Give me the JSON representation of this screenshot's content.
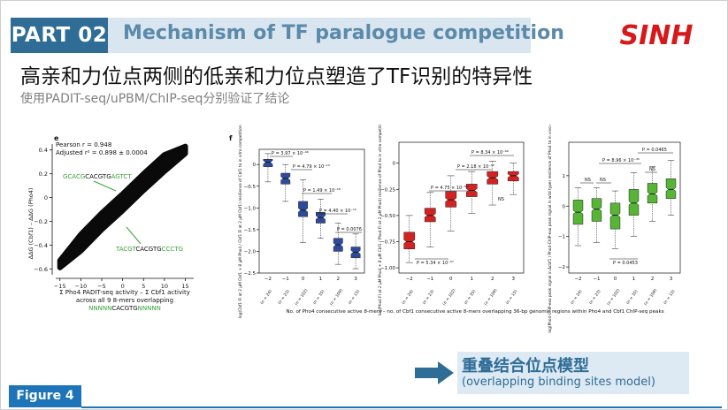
{
  "header": {
    "part_label": "PART 02",
    "part_title": "Mechanism of TF paralogue competition",
    "logo_text": "SINH"
  },
  "headline": "高亲和力位点两侧的低亲和力位点塑造了TF识别的特异性",
  "subline": "使用PADIT-seq/uPBM/ChIP-seq分别验证了结论",
  "panel_e": {
    "label": "e",
    "stat_pearson": "Pearson r = 0.948",
    "stat_adjusted": "Adjusted r² = 0.898 ± 0.0004",
    "seq_top": [
      "GCACG",
      "CACGTG",
      "AGTCT"
    ],
    "seq_bottom": [
      "TACGT",
      "CACGTG",
      "CCCTG"
    ],
    "ylabel": "ΔΔG (Cbf1) – ΔΔG (Pho4)",
    "xlabel_1": "Σ Pho4 PADIT-seq activity – Σ Cbf1 activity",
    "xlabel_2": "across all 9 8-mers overlapping",
    "xlabel_3": [
      "NNNNN",
      "CACGTG",
      "NNNNN"
    ]
  },
  "panel_f": {
    "label": "f",
    "xlabel": "No. of Pho4 consecutive active 8-mers – no. of Cbf1 consecutive active 8-mers overlapping 36-bp genomic regions within Pho4 and Cbf1 ChIP-seq peaks",
    "x_ticks": [
      "−2",
      "−1",
      "0",
      "1",
      "2",
      "3"
    ],
    "n_labels": [
      "(n = 24)",
      "(n = 23)",
      "(n = 102)",
      "(n = 35)",
      "(n = 109)",
      "(n = 15)"
    ]
  },
  "chart_data": [
    {
      "type": "scatter",
      "title": "",
      "xlabel": "Σ Pho4 PADIT-seq activity – Σ Cbf1 activity across all 9 8-mers overlapping NNNNNCACGTGNNNNN",
      "ylabel": "ΔΔG (Cbf1) – ΔΔG (Pho4)",
      "xlim": [
        -16,
        17
      ],
      "ylim": [
        -0.65,
        0.45
      ],
      "x_ticks": [
        -15,
        -10,
        -5,
        0,
        5,
        10,
        15
      ],
      "y_ticks": [
        -0.6,
        -0.4,
        -0.2,
        0,
        0.2,
        0.4
      ],
      "y_tick_labels": [
        "−0.6",
        "−0.4",
        "−0.2",
        "0",
        "0.2",
        "0.4"
      ],
      "x_tick_labels": [
        "−15",
        "−10",
        "−5",
        "0",
        "5",
        "10",
        "15"
      ],
      "trend": [
        [
          -15,
          -0.56
        ],
        [
          -10,
          -0.38
        ],
        [
          -5,
          -0.2
        ],
        [
          0,
          -0.04
        ],
        [
          5,
          0.13
        ],
        [
          10,
          0.29
        ],
        [
          15,
          0.4
        ]
      ],
      "annotations": [
        "Pearson r = 0.948",
        "Adjusted r² = 0.898 ± 0.0004"
      ]
    },
    {
      "type": "box",
      "color": "#2e4a9c",
      "ylabel": "log(Cbf1 Fl at 2 μM Cbf1 + 8 μM Pho4 / Cbf1 Fl at 2 μM Cbf1) resilience of Cbf1 to in vitro competition from Pho4",
      "categories": [
        "−2",
        "−1",
        "0",
        "1",
        "2",
        "3"
      ],
      "ylim": [
        -2.5,
        0.35
      ],
      "y_ticks": [
        0,
        -0.5,
        -1,
        -1.5,
        -2,
        -2.5
      ],
      "y_tick_labels": [
        "0",
        "−0.5",
        "−1.0",
        "−1.5",
        "−2.0",
        "−2.5"
      ],
      "boxes": [
        {
          "q1": -0.05,
          "median": 0.05,
          "q3": 0.12,
          "lo": -0.4,
          "hi": 0.25
        },
        {
          "q1": -0.45,
          "median": -0.32,
          "q3": -0.2,
          "lo": -0.85,
          "hi": 0.0
        },
        {
          "q1": -1.2,
          "median": -1.05,
          "q3": -0.85,
          "lo": -1.8,
          "hi": -0.35
        },
        {
          "q1": -1.35,
          "median": -1.22,
          "q3": -1.1,
          "lo": -1.7,
          "hi": -0.8
        },
        {
          "q1": -2.0,
          "median": -1.85,
          "q3": -1.7,
          "lo": -2.3,
          "hi": -1.35
        },
        {
          "q1": -2.15,
          "median": -2.02,
          "q3": -1.9,
          "lo": -2.4,
          "hi": -1.6
        }
      ],
      "annotations": [
        "P = 3.97 × 10⁻⁶⁶",
        "P = 4.79 × 10⁻¹⁰",
        "P = 1.49 × 10⁻¹⁸",
        "P = 4.40 × 10⁻¹²",
        "P = 0.0076"
      ]
    },
    {
      "type": "box",
      "color": "#d32222",
      "ylabel": "log(Pho4 Fl at 2 μM Pho4 + 8 μM Cbf1 / Pho4 Fl at 2 μM Pho4) resilience of Pho4 to in vitro competition from Cbf1",
      "categories": [
        "−2",
        "−1",
        "0",
        "1",
        "2",
        "3"
      ],
      "ylim": [
        -1.05,
        0.2
      ],
      "y_ticks": [
        0,
        -0.25,
        -0.5,
        -0.75,
        -1.0
      ],
      "y_tick_labels": [
        "0",
        "−0.25",
        "−0.50",
        "−0.75",
        "−1.00"
      ],
      "boxes": [
        {
          "q1": -0.82,
          "median": -0.75,
          "q3": -0.66,
          "lo": -0.95,
          "hi": -0.5
        },
        {
          "q1": -0.56,
          "median": -0.5,
          "q3": -0.43,
          "lo": -0.8,
          "hi": -0.28
        },
        {
          "q1": -0.42,
          "median": -0.35,
          "q3": -0.27,
          "lo": -0.65,
          "hi": -0.12
        },
        {
          "q1": -0.32,
          "median": -0.26,
          "q3": -0.2,
          "lo": -0.48,
          "hi": -0.08
        },
        {
          "q1": -0.2,
          "median": -0.14,
          "q3": -0.08,
          "lo": -0.4,
          "hi": 0.02
        },
        {
          "q1": -0.17,
          "median": -0.12,
          "q3": -0.08,
          "lo": -0.3,
          "hi": 0.0
        }
      ],
      "annotations": [
        "P = 8.34 × 10⁻⁶⁶",
        "P = 2.18 × 10⁻⁵³",
        "P = 4.75 × 10⁻⁵⁸",
        "P = 5.34 × 10⁻⁶⁷",
        "NS"
      ]
    },
    {
      "type": "box",
      "color": "#57b535",
      "ylabel": "log(Pho4-ChIP-exo peak signal in Δcbf1 / Pho4-ChIP-exo peak signal in wild type) resilience of Pho4 to in vivo competition from Cbf1",
      "categories": [
        "−2",
        "−1",
        "0",
        "1",
        "2",
        "3"
      ],
      "ylim": [
        -2.2,
        2.1
      ],
      "y_ticks": [
        1,
        0,
        -1,
        -2
      ],
      "y_tick_labels": [
        "1",
        "0",
        "−1",
        "−2"
      ],
      "boxes": [
        {
          "q1": -0.6,
          "median": -0.2,
          "q3": 0.2,
          "lo": -1.3,
          "hi": 0.6
        },
        {
          "q1": -0.5,
          "median": -0.1,
          "q3": 0.25,
          "lo": -1.2,
          "hi": 0.6
        },
        {
          "q1": -0.75,
          "median": -0.3,
          "q3": 0.1,
          "lo": -1.4,
          "hi": 0.5
        },
        {
          "q1": -0.3,
          "median": 0.1,
          "q3": 0.55,
          "lo": -1.0,
          "hi": 1.1
        },
        {
          "q1": 0.1,
          "median": 0.4,
          "q3": 0.75,
          "lo": -0.5,
          "hi": 1.3
        },
        {
          "q1": 0.25,
          "median": 0.55,
          "q3": 0.9,
          "lo": -0.3,
          "hi": 1.5
        }
      ],
      "annotations": [
        "P = 0.0465",
        "P = 8.96 × 10⁻⁴⁵",
        "NS",
        "NS",
        "NS",
        "P = 0.0453"
      ]
    }
  ],
  "callout": {
    "title": "重叠结合位点模型",
    "subtitle": "(overlapping binding sites model)"
  },
  "figure_tab": "Figure 4",
  "colors": {
    "brand_blue": "#2f6d97",
    "bar_light": "#d9e6ef",
    "logo_red": "#d6191b",
    "tab_blue": "#1d74b8",
    "seq_green": "#3aa23a"
  }
}
